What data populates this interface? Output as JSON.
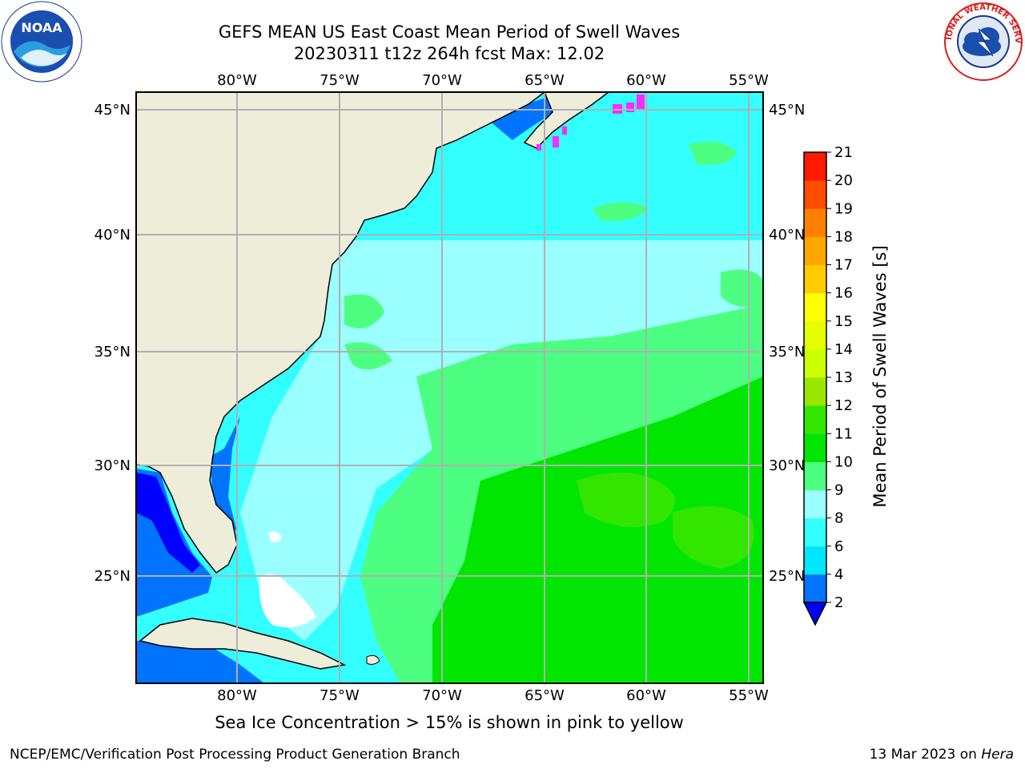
{
  "title": {
    "line1": "GEFS MEAN US East Coast Mean Period of Swell Waves",
    "line2": "20230311 t12z 264h fcst   Max: 12.02"
  },
  "logos": {
    "left": {
      "name": "NOAA",
      "icon": "noaa-logo"
    },
    "right": {
      "name": "NATIONAL WEATHER SERVICE",
      "icon": "nws-logo"
    }
  },
  "map": {
    "lon_labels": [
      "80°W",
      "75°W",
      "70°W",
      "65°W",
      "60°W",
      "55°W"
    ],
    "lat_labels": [
      "45°N",
      "40°N",
      "35°N",
      "30°N",
      "25°N"
    ],
    "colors": {
      "land": "#eeedda",
      "coastline": "#000000",
      "grid": "#b0b0b0",
      "frame": "#000000",
      "sea_ice": "#ff2aff"
    },
    "sea_ice_note": "Sea Ice Concentration > 15% is shown in pink to yellow"
  },
  "colorbar": {
    "label": "Mean Period of Swell Waves [s]",
    "ticks": [
      "2",
      "4",
      "6",
      "8",
      "9",
      "10",
      "11",
      "12",
      "13",
      "14",
      "15",
      "16",
      "17",
      "18",
      "19",
      "20",
      "21"
    ],
    "colors": [
      "#0000ff",
      "#0073ff",
      "#00e6ff",
      "#33ffff",
      "#99ffff",
      "#4dff80",
      "#00e600",
      "#33e600",
      "#99e600",
      "#ccff00",
      "#e6ff00",
      "#ffff00",
      "#ffcc00",
      "#ffa600",
      "#ff8000",
      "#ff4d00",
      "#ff1a00",
      "#ff0000"
    ],
    "under_color": "#0000ff"
  },
  "footer": {
    "left": "NCEP/EMC/Verification Post Processing Product Generation Branch",
    "right_prefix": "13 Mar 2023 on ",
    "right_machine": "Hera"
  }
}
